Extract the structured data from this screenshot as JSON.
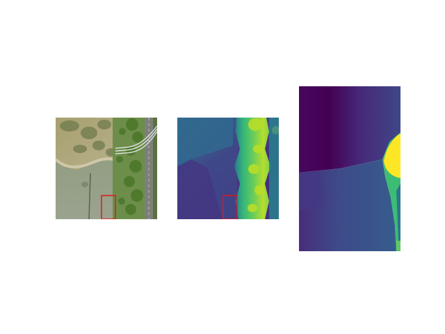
{
  "figure": {
    "panels": [
      {
        "name": "aerial-photo",
        "kind": "satellite image",
        "has_highlight_box": true,
        "highlight_color": "#e0161b"
      },
      {
        "name": "depth-map",
        "kind": "heatmap",
        "colormap": "viridis",
        "has_highlight_box": true,
        "highlight_color": "#e0161b"
      },
      {
        "name": "depth-crop-zoom",
        "kind": "heatmap",
        "colormap": "viridis",
        "has_highlight_box": false
      }
    ],
    "colors": {
      "background": "#ffffff",
      "highlight": "#e0161b",
      "viridis_dark": "#440154",
      "viridis_blue": "#3b528b",
      "viridis_teal": "#21918c",
      "viridis_green": "#5ec962",
      "viridis_yellow": "#fde725"
    }
  }
}
